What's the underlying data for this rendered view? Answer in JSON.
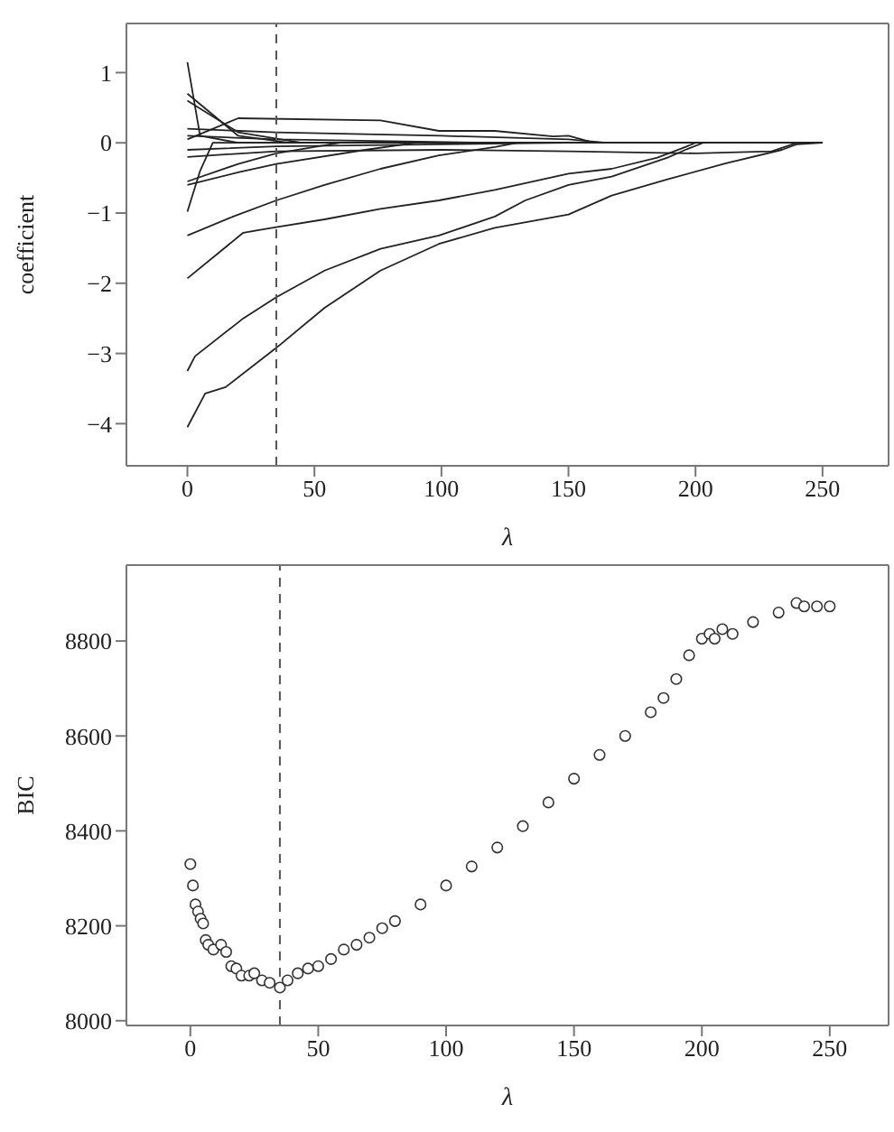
{
  "chart_data": [
    {
      "type": "line",
      "xlabel": "λ",
      "ylabel": "coefficient",
      "xlim": [
        -24,
        276
      ],
      "ylim": [
        -4.6,
        1.7
      ],
      "xticks": [
        0,
        50,
        100,
        150,
        200,
        250
      ],
      "yticks": [
        {
          "value": -4,
          "label": "−4"
        },
        {
          "value": -3,
          "label": "−3"
        },
        {
          "value": -2,
          "label": "−2"
        },
        {
          "value": -1,
          "label": "−1"
        },
        0,
        1
      ],
      "marker": "none",
      "line_style": "solid",
      "ref_lines": [
        {
          "axis": "x",
          "value": 35,
          "color": "#555555",
          "line_style": "dashed"
        }
      ],
      "series": [
        {
          "color": "#222222",
          "x": [
            0,
            7,
            15,
            35,
            54,
            76,
            99,
            121,
            150,
            167,
            189,
            212,
            234,
            240,
            250
          ],
          "values": [
            -4.05,
            -3.57,
            -3.48,
            -2.92,
            -2.35,
            -1.82,
            -1.44,
            -1.21,
            -1.02,
            -0.75,
            -0.52,
            -0.29,
            -0.1,
            -0.02,
            0
          ]
        },
        {
          "color": "#222222",
          "x": [
            0,
            3,
            22,
            35,
            54,
            76,
            99,
            121,
            133,
            150,
            167,
            189,
            196,
            203,
            250
          ],
          "values": [
            -3.25,
            -3.04,
            -2.5,
            -2.2,
            -1.82,
            -1.51,
            -1.32,
            -1.05,
            -0.82,
            -0.6,
            -0.48,
            -0.21,
            -0.1,
            0,
            0
          ]
        },
        {
          "color": "#222222",
          "x": [
            0,
            22,
            35,
            54,
            76,
            99,
            121,
            150,
            167,
            185,
            196,
            200,
            250
          ],
          "values": [
            -1.93,
            -1.28,
            -1.2,
            -1.09,
            -0.94,
            -0.82,
            -0.67,
            -0.44,
            -0.37,
            -0.21,
            -0.06,
            0,
            0
          ]
        },
        {
          "color": "#222222",
          "x": [
            0,
            18,
            35,
            54,
            76,
            99,
            121,
            130,
            250
          ],
          "values": [
            -1.32,
            -1.05,
            -0.82,
            -0.6,
            -0.37,
            -0.18,
            -0.06,
            0,
            0
          ]
        },
        {
          "color": "#222222",
          "x": [
            0,
            20,
            35,
            70,
            90,
            250
          ],
          "values": [
            -0.6,
            -0.42,
            -0.3,
            -0.1,
            0,
            0
          ]
        },
        {
          "color": "#222222",
          "x": [
            0,
            20,
            35,
            60,
            250
          ],
          "values": [
            -0.55,
            -0.3,
            -0.15,
            0,
            0
          ]
        },
        {
          "color": "#222222",
          "x": [
            0,
            5,
            10,
            250
          ],
          "values": [
            -0.98,
            -0.4,
            0,
            0
          ]
        },
        {
          "color": "#222222",
          "x": [
            0,
            5,
            20,
            250
          ],
          "values": [
            1.15,
            0.1,
            0,
            0
          ]
        },
        {
          "color": "#222222",
          "x": [
            0,
            20,
            40,
            250
          ],
          "values": [
            0.7,
            0.1,
            0,
            0
          ]
        },
        {
          "color": "#222222",
          "x": [
            0,
            20,
            45,
            250
          ],
          "values": [
            0.6,
            0.15,
            0,
            0
          ]
        },
        {
          "color": "#222222",
          "x": [
            0,
            20,
            76,
            99,
            121,
            144,
            150,
            160,
            170,
            250
          ],
          "values": [
            0.05,
            0.35,
            0.32,
            0.17,
            0.17,
            0.09,
            0.1,
            0,
            0,
            0
          ]
        },
        {
          "color": "#222222",
          "x": [
            0,
            35,
            100,
            150,
            165,
            250
          ],
          "values": [
            0.2,
            0.15,
            0.1,
            0.05,
            0,
            0
          ]
        },
        {
          "color": "#222222",
          "x": [
            0,
            35,
            100,
            150,
            200,
            230,
            240,
            250
          ],
          "values": [
            -0.2,
            -0.12,
            -0.1,
            -0.12,
            -0.15,
            -0.12,
            0,
            0
          ]
        },
        {
          "color": "#222222",
          "x": [
            0,
            35,
            120,
            250
          ],
          "values": [
            0.1,
            0.05,
            0,
            0
          ]
        },
        {
          "color": "#222222",
          "x": [
            0,
            35,
            150,
            250
          ],
          "values": [
            -0.1,
            -0.05,
            0,
            0
          ]
        }
      ]
    },
    {
      "type": "scatter",
      "xlabel": "λ",
      "ylabel": "BIC",
      "xlim": [
        -25,
        273
      ],
      "ylim": [
        7990,
        8960
      ],
      "xticks": [
        0,
        50,
        100,
        150,
        200,
        250
      ],
      "yticks": [
        8000,
        8200,
        8400,
        8600,
        8800
      ],
      "marker": "circle",
      "ref_lines": [
        {
          "axis": "x",
          "value": 35,
          "color": "#555555",
          "line_style": "dashed"
        }
      ],
      "series": [
        {
          "color": "#333333",
          "x": [
            0,
            1,
            2,
            3,
            4,
            5,
            6,
            7,
            9,
            12,
            14,
            16,
            18,
            20,
            23,
            25,
            28,
            31,
            35,
            38,
            42,
            46,
            50,
            55,
            60,
            65,
            70,
            75,
            80,
            90,
            100,
            110,
            120,
            130,
            140,
            150,
            160,
            170,
            180,
            185,
            190,
            195,
            200,
            203,
            205,
            208,
            212,
            220,
            230,
            237,
            240,
            245,
            250
          ],
          "values": [
            8330,
            8285,
            8245,
            8230,
            8215,
            8205,
            8170,
            8160,
            8150,
            8160,
            8145,
            8115,
            8110,
            8095,
            8095,
            8100,
            8085,
            8080,
            8070,
            8085,
            8100,
            8110,
            8115,
            8130,
            8150,
            8160,
            8175,
            8195,
            8210,
            8245,
            8285,
            8325,
            8365,
            8410,
            8460,
            8510,
            8560,
            8600,
            8650,
            8680,
            8720,
            8770,
            8805,
            8815,
            8805,
            8825,
            8815,
            8840,
            8860,
            8880,
            8873,
            8873,
            8873
          ]
        }
      ]
    }
  ]
}
